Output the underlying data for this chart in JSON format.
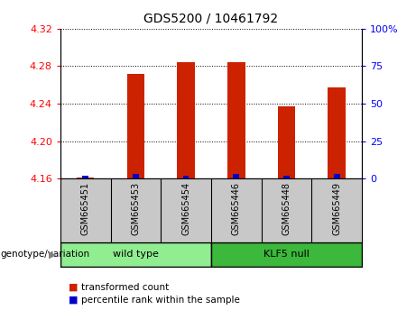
{
  "title": "GDS5200 / 10461792",
  "samples": [
    "GSM665451",
    "GSM665453",
    "GSM665454",
    "GSM665446",
    "GSM665448",
    "GSM665449"
  ],
  "transformed_count": [
    4.161,
    4.272,
    4.284,
    4.284,
    4.237,
    4.257
  ],
  "percentile_rank": [
    2,
    3,
    2,
    3,
    2,
    3
  ],
  "ylim_left": [
    4.16,
    4.32
  ],
  "ylim_right": [
    0,
    100
  ],
  "yticks_left": [
    4.16,
    4.2,
    4.24,
    4.28,
    4.32
  ],
  "yticks_right": [
    0,
    25,
    50,
    75,
    100
  ],
  "groups": [
    {
      "label": "wild type",
      "start": 0,
      "end": 3,
      "color": "#90EE90"
    },
    {
      "label": "KLF5 null",
      "start": 3,
      "end": 6,
      "color": "#3CB83C"
    }
  ],
  "bar_color_red": "#CC2200",
  "bar_color_blue": "#0000CC",
  "bar_width": 0.35,
  "blue_bar_width": 0.12,
  "bg_color_plot": "#FFFFFF",
  "bg_color_sample": "#C8C8C8",
  "group_label": "genotype/variation",
  "legend_items": [
    {
      "label": "transformed count",
      "color": "#CC2200"
    },
    {
      "label": "percentile rank within the sample",
      "color": "#0000CC"
    }
  ],
  "baseline": 4.16,
  "grid_color": "#000000",
  "title_fontsize": 10,
  "tick_fontsize": 8,
  "sample_fontsize": 7,
  "group_fontsize": 8,
  "legend_fontsize": 7.5
}
